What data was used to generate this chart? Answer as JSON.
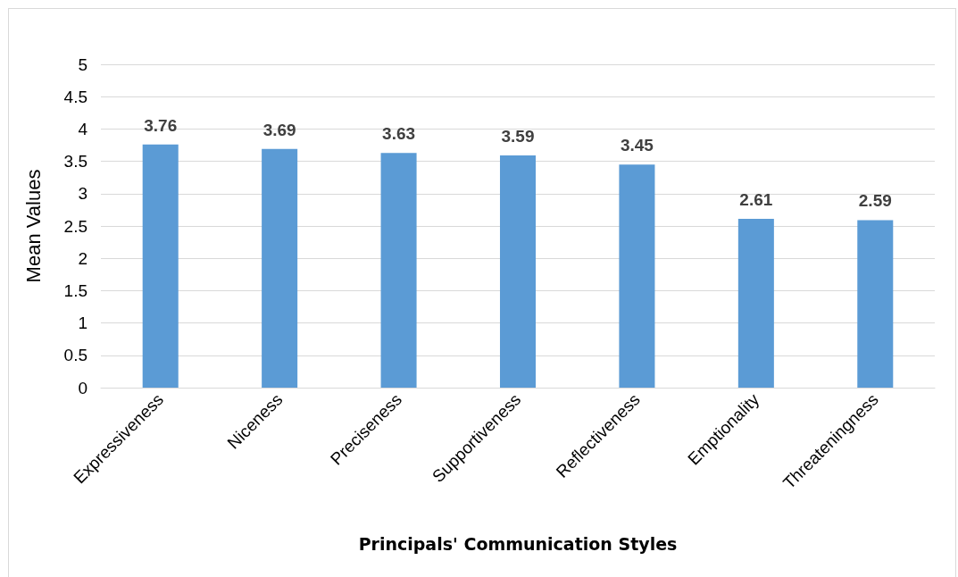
{
  "chart_data": {
    "type": "bar",
    "xlabel": "Principals' Communication Styles",
    "ylabel": "Mean Values",
    "categories": [
      "Expressiveness",
      "Niceness",
      "Preciseness",
      "Supportiveness",
      "Reflectiveness",
      "Emptionality",
      "Threateningness"
    ],
    "values": [
      3.76,
      3.69,
      3.63,
      3.59,
      3.45,
      2.61,
      2.59
    ],
    "color": "#5b9bd5",
    "ylim": [
      0,
      5
    ],
    "yticks": [
      0,
      0.5,
      1,
      1.5,
      2,
      2.5,
      3,
      3.5,
      4,
      4.5,
      5
    ],
    "grid": "y",
    "data_labels": true
  }
}
